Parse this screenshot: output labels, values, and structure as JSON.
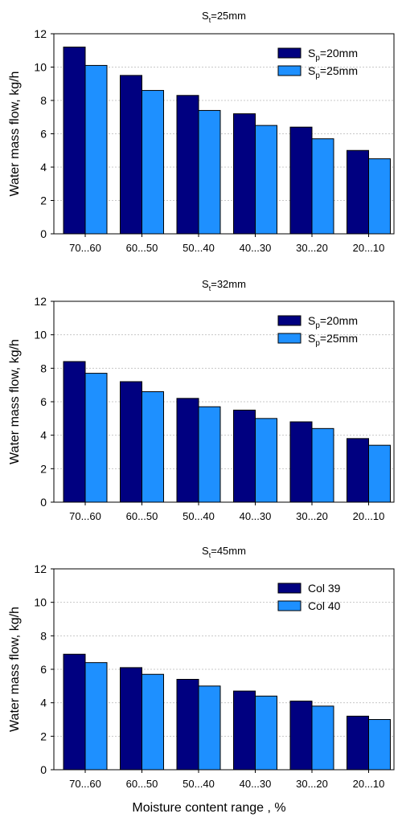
{
  "colors": {
    "series_dark": "#000080",
    "series_light": "#1E90FF",
    "grid": "#c8c8c8",
    "axis": "#000000"
  },
  "xlabel": "Moisture content range , %",
  "chart_data": [
    {
      "type": "bar",
      "title": {
        "main": "S",
        "sub": "t",
        "rest": "=25mm"
      },
      "ylabel": "Water mass flow, kg/h",
      "ylim": [
        0,
        12
      ],
      "yticks": [
        "0",
        "2",
        "4",
        "6",
        "8",
        "10",
        "12"
      ],
      "grid": "horizontal dotted",
      "legend_position": "top-right",
      "categories": [
        "70...60",
        "60...50",
        "50...40",
        "40...30",
        "30...20",
        "20...10"
      ],
      "series": [
        {
          "name": {
            "main": "S",
            "sub": "p",
            "rest": "=20mm"
          },
          "color": "#000080",
          "values": [
            11.2,
            9.5,
            8.3,
            7.2,
            6.4,
            5.0
          ]
        },
        {
          "name": {
            "main": "S",
            "sub": "p",
            "rest": "=25mm"
          },
          "color": "#1E90FF",
          "values": [
            10.1,
            8.6,
            7.4,
            6.5,
            5.7,
            4.5
          ]
        }
      ]
    },
    {
      "type": "bar",
      "title": {
        "main": "S",
        "sub": "t",
        "rest": "=32mm"
      },
      "ylabel": "Water mass flow, kg/h",
      "ylim": [
        0,
        12
      ],
      "yticks": [
        "0",
        "2",
        "4",
        "6",
        "8",
        "10",
        "12"
      ],
      "grid": "horizontal dotted",
      "legend_position": "top-right",
      "categories": [
        "70...60",
        "60...50",
        "50...40",
        "40...30",
        "30...20",
        "20...10"
      ],
      "series": [
        {
          "name": {
            "main": "S",
            "sub": "p",
            "rest": "=20mm"
          },
          "color": "#000080",
          "values": [
            8.4,
            7.2,
            6.2,
            5.5,
            4.8,
            3.8
          ]
        },
        {
          "name": {
            "main": "S",
            "sub": "p",
            "rest": "=25mm"
          },
          "color": "#1E90FF",
          "values": [
            7.7,
            6.6,
            5.7,
            5.0,
            4.4,
            3.4
          ]
        }
      ]
    },
    {
      "type": "bar",
      "title": {
        "main": "S",
        "sub": "t",
        "rest": "=45mm"
      },
      "ylabel": "Water mass flow, kg/h",
      "ylim": [
        0,
        12
      ],
      "yticks": [
        "0",
        "2",
        "4",
        "6",
        "8",
        "10",
        "12"
      ],
      "grid": "horizontal dotted",
      "legend_position": "top-right",
      "categories": [
        "70...60",
        "60...50",
        "50...40",
        "40...30",
        "30...20",
        "20...10"
      ],
      "series": [
        {
          "name": {
            "main": "Col 39",
            "sub": "",
            "rest": ""
          },
          "color": "#000080",
          "values": [
            6.9,
            6.1,
            5.4,
            4.7,
            4.1,
            3.2
          ]
        },
        {
          "name": {
            "main": "Col 40",
            "sub": "",
            "rest": ""
          },
          "color": "#1E90FF",
          "values": [
            6.4,
            5.7,
            5.0,
            4.4,
            3.8,
            3.0
          ]
        }
      ]
    }
  ]
}
